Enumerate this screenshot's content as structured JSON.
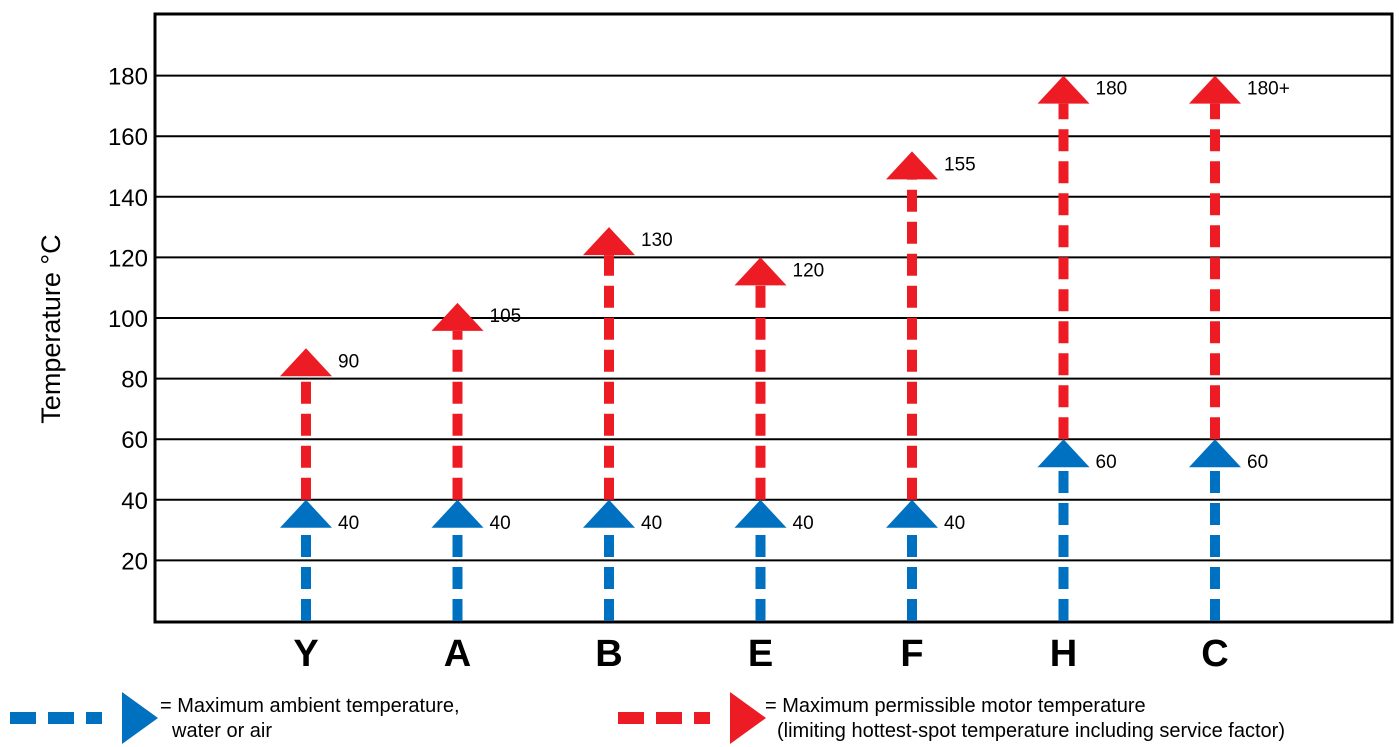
{
  "chart_data": {
    "type": "bar",
    "ylabel": "Temperature °C",
    "ylim": [
      0,
      200
    ],
    "yticks": [
      20,
      40,
      60,
      80,
      100,
      120,
      140,
      160,
      180
    ],
    "grid": true,
    "categories": [
      "Y",
      "A",
      "B",
      "E",
      "F",
      "H",
      "C"
    ],
    "series": [
      {
        "name": "Maximum ambient temperature, water or air",
        "color": "#0070c0",
        "values": [
          40,
          40,
          40,
          40,
          40,
          60,
          60
        ],
        "labels": [
          "40",
          "40",
          "40",
          "40",
          "40",
          "60",
          "60"
        ]
      },
      {
        "name": "Maximum permissible motor temperature (limiting hottest-spot temperature including service factor)",
        "color": "#ed1c24",
        "values": [
          90,
          105,
          130,
          120,
          155,
          180,
          180
        ],
        "labels": [
          "90",
          "105",
          "130",
          "120",
          "155",
          "180",
          "180+"
        ]
      }
    ],
    "legend": {
      "placement": "bottom",
      "items": [
        {
          "line1": "= Maximum ambient temperature,",
          "line2": "water or air"
        },
        {
          "line1": "= Maximum permissible motor temperature",
          "line2": "(limiting hottest-spot temperature including service factor)"
        }
      ]
    }
  }
}
